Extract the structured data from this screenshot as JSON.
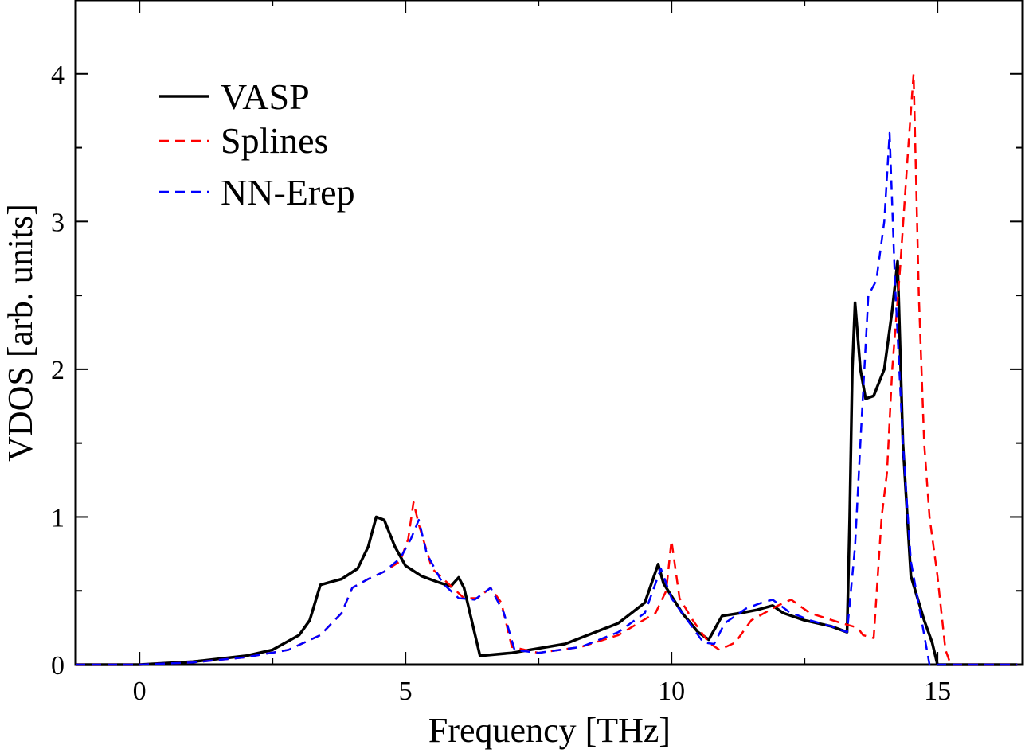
{
  "chart_data": {
    "type": "line",
    "title": "",
    "xlabel": "Frequency [THz]",
    "ylabel": "VDOS [arb. units]",
    "xlim": [
      -1.2,
      16.6
    ],
    "ylim": [
      0,
      4.5
    ],
    "xticks": [
      0,
      5,
      10,
      15
    ],
    "yticks": [
      0,
      1,
      2,
      3,
      4
    ],
    "x_tick_labels": [
      "0",
      "5",
      "10",
      "15"
    ],
    "y_tick_labels": [
      "0",
      "1",
      "2",
      "3",
      "4"
    ],
    "grid": false,
    "legend_position": "top-left",
    "series": [
      {
        "name": "VASP",
        "color": "#000000",
        "style": "solid",
        "points": [
          [
            -1.2,
            0
          ],
          [
            0,
            0
          ],
          [
            1,
            0.02
          ],
          [
            2,
            0.06
          ],
          [
            2.5,
            0.1
          ],
          [
            3,
            0.2
          ],
          [
            3.2,
            0.3
          ],
          [
            3.4,
            0.54
          ],
          [
            3.6,
            0.56
          ],
          [
            3.8,
            0.58
          ],
          [
            4.1,
            0.65
          ],
          [
            4.3,
            0.8
          ],
          [
            4.45,
            1.0
          ],
          [
            4.6,
            0.98
          ],
          [
            4.8,
            0.8
          ],
          [
            5.0,
            0.67
          ],
          [
            5.3,
            0.6
          ],
          [
            5.6,
            0.56
          ],
          [
            5.85,
            0.53
          ],
          [
            6.0,
            0.59
          ],
          [
            6.1,
            0.52
          ],
          [
            6.4,
            0.06
          ],
          [
            7,
            0.08
          ],
          [
            8,
            0.14
          ],
          [
            9,
            0.28
          ],
          [
            9.5,
            0.42
          ],
          [
            9.75,
            0.68
          ],
          [
            9.85,
            0.55
          ],
          [
            10.2,
            0.35
          ],
          [
            10.5,
            0.22
          ],
          [
            10.7,
            0.17
          ],
          [
            10.95,
            0.33
          ],
          [
            11.3,
            0.35
          ],
          [
            11.6,
            0.37
          ],
          [
            11.9,
            0.4
          ],
          [
            12.1,
            0.35
          ],
          [
            12.5,
            0.3
          ],
          [
            13,
            0.26
          ],
          [
            13.3,
            0.22
          ],
          [
            13.35,
            1.0
          ],
          [
            13.4,
            2.0
          ],
          [
            13.45,
            2.45
          ],
          [
            13.55,
            2.0
          ],
          [
            13.65,
            1.8
          ],
          [
            13.8,
            1.82
          ],
          [
            14.0,
            2.0
          ],
          [
            14.15,
            2.4
          ],
          [
            14.25,
            2.73
          ],
          [
            14.35,
            1.5
          ],
          [
            14.5,
            0.6
          ],
          [
            14.75,
            0.3
          ],
          [
            14.9,
            0.15
          ],
          [
            15.0,
            0
          ],
          [
            16.5,
            0
          ]
        ]
      },
      {
        "name": "Splines",
        "color": "#ff0000",
        "style": "dashed",
        "points": [
          [
            -1.2,
            0
          ],
          [
            0,
            0
          ],
          [
            1,
            0.015
          ],
          [
            2,
            0.05
          ],
          [
            2.8,
            0.1
          ],
          [
            3.4,
            0.2
          ],
          [
            3.8,
            0.35
          ],
          [
            4.0,
            0.52
          ],
          [
            4.3,
            0.58
          ],
          [
            4.6,
            0.63
          ],
          [
            4.9,
            0.7
          ],
          [
            5.05,
            0.85
          ],
          [
            5.15,
            1.1
          ],
          [
            5.25,
            0.95
          ],
          [
            5.5,
            0.65
          ],
          [
            5.8,
            0.55
          ],
          [
            6.1,
            0.45
          ],
          [
            6.35,
            0.45
          ],
          [
            6.6,
            0.52
          ],
          [
            6.8,
            0.42
          ],
          [
            7.0,
            0.12
          ],
          [
            7.5,
            0.08
          ],
          [
            8.3,
            0.12
          ],
          [
            9,
            0.2
          ],
          [
            9.7,
            0.35
          ],
          [
            9.9,
            0.5
          ],
          [
            10.0,
            0.84
          ],
          [
            10.15,
            0.45
          ],
          [
            10.4,
            0.3
          ],
          [
            10.7,
            0.15
          ],
          [
            10.9,
            0.1
          ],
          [
            11.2,
            0.15
          ],
          [
            11.5,
            0.3
          ],
          [
            12.0,
            0.4
          ],
          [
            12.25,
            0.44
          ],
          [
            12.6,
            0.35
          ],
          [
            13.2,
            0.28
          ],
          [
            13.5,
            0.25
          ],
          [
            13.6,
            0.2
          ],
          [
            13.8,
            0.18
          ],
          [
            13.95,
            1.0
          ],
          [
            14.05,
            1.3
          ],
          [
            14.15,
            2.0
          ],
          [
            14.3,
            2.7
          ],
          [
            14.45,
            3.5
          ],
          [
            14.55,
            4.0
          ],
          [
            14.65,
            2.5
          ],
          [
            14.75,
            1.5
          ],
          [
            14.85,
            1.0
          ],
          [
            15.0,
            0.6
          ],
          [
            15.15,
            0.1
          ],
          [
            15.25,
            0
          ],
          [
            16.5,
            0
          ]
        ]
      },
      {
        "name": "NN-Erep",
        "color": "#0000ff",
        "style": "dashed",
        "points": [
          [
            -1.2,
            0
          ],
          [
            0,
            0
          ],
          [
            1,
            0.015
          ],
          [
            2,
            0.05
          ],
          [
            2.8,
            0.1
          ],
          [
            3.4,
            0.2
          ],
          [
            3.8,
            0.35
          ],
          [
            4.0,
            0.52
          ],
          [
            4.3,
            0.58
          ],
          [
            4.6,
            0.63
          ],
          [
            4.9,
            0.72
          ],
          [
            5.1,
            0.85
          ],
          [
            5.25,
            0.98
          ],
          [
            5.4,
            0.75
          ],
          [
            5.7,
            0.55
          ],
          [
            6.0,
            0.45
          ],
          [
            6.3,
            0.44
          ],
          [
            6.6,
            0.52
          ],
          [
            6.85,
            0.35
          ],
          [
            7.05,
            0.1
          ],
          [
            7.5,
            0.08
          ],
          [
            8.3,
            0.12
          ],
          [
            9,
            0.22
          ],
          [
            9.5,
            0.35
          ],
          [
            9.7,
            0.55
          ],
          [
            9.8,
            0.65
          ],
          [
            10.0,
            0.45
          ],
          [
            10.3,
            0.3
          ],
          [
            10.6,
            0.15
          ],
          [
            10.8,
            0.14
          ],
          [
            11.0,
            0.28
          ],
          [
            11.4,
            0.38
          ],
          [
            11.7,
            0.42
          ],
          [
            11.9,
            0.44
          ],
          [
            12.2,
            0.36
          ],
          [
            12.6,
            0.3
          ],
          [
            13.0,
            0.26
          ],
          [
            13.3,
            0.22
          ],
          [
            13.45,
            0.8
          ],
          [
            13.55,
            1.5
          ],
          [
            13.7,
            2.5
          ],
          [
            13.85,
            2.6
          ],
          [
            14.0,
            3.0
          ],
          [
            14.1,
            3.6
          ],
          [
            14.2,
            2.6
          ],
          [
            14.35,
            1.5
          ],
          [
            14.5,
            0.7
          ],
          [
            14.7,
            0.3
          ],
          [
            14.85,
            0
          ],
          [
            16.5,
            0
          ]
        ]
      }
    ]
  }
}
